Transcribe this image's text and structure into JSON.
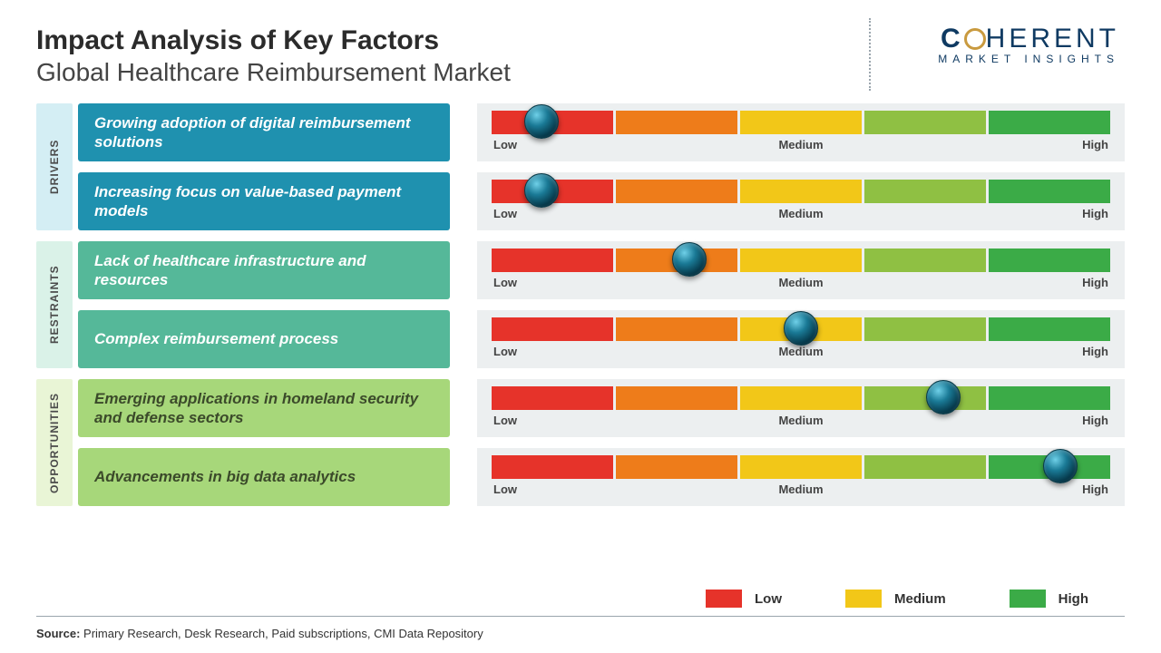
{
  "title": "Impact Analysis of Key Factors",
  "subtitle": "Global Healthcare Reimbursement Market",
  "logo": {
    "line1": "COHERENT",
    "line2": "MARKET INSIGHTS"
  },
  "scale_labels": {
    "low": "Low",
    "medium": "Medium",
    "high": "High"
  },
  "segment_colors": [
    "#e6332a",
    "#ee7c1a",
    "#f2c718",
    "#8fc043",
    "#3bab47"
  ],
  "track_bg": "#eceff0",
  "knob_color_note": "teal-glossy-orb",
  "categories": [
    {
      "name": "DRIVERS",
      "tab_bg": "#d4eef4",
      "box_bg": "#1f91af",
      "box_text_color": "#ffffff",
      "factors": [
        {
          "label": "Growing adoption of digital reimbursement solutions",
          "impact_pct": 8
        },
        {
          "label": "Increasing focus on value-based payment models",
          "impact_pct": 8
        }
      ]
    },
    {
      "name": "RESTRAINTS",
      "tab_bg": "#daf2e8",
      "box_bg": "#55b899",
      "box_text_color": "#ffffff",
      "factors": [
        {
          "label": "Lack of healthcare infrastructure and resources",
          "impact_pct": 32
        },
        {
          "label": "Complex reimbursement process",
          "impact_pct": 50
        }
      ]
    },
    {
      "name": "OPPORTUNITIES",
      "tab_bg": "#e9f5d6",
      "box_bg": "#a7d77a",
      "box_text_color": "#3b4a2a",
      "factors": [
        {
          "label": "Emerging applications in homeland security and defense sectors",
          "impact_pct": 73
        },
        {
          "label": "Advancements in big data analytics",
          "impact_pct": 92
        }
      ]
    }
  ],
  "legend": [
    {
      "label": "Low",
      "color": "#e6332a"
    },
    {
      "label": "Medium",
      "color": "#f2c718"
    },
    {
      "label": "High",
      "color": "#3bab47"
    }
  ],
  "source_prefix": "Source:",
  "source_text": " Primary Research, Desk Research, Paid subscriptions, CMI Data Repository"
}
